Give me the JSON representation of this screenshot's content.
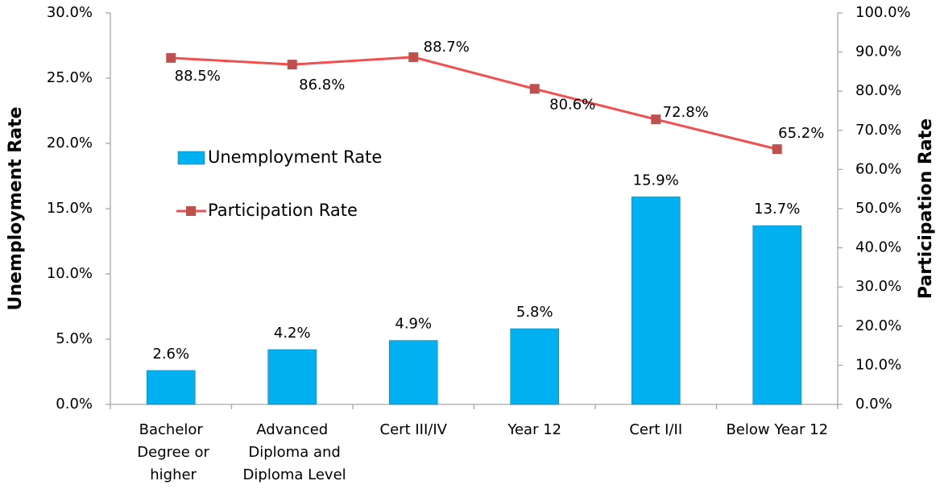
{
  "chart_data": {
    "type": "bar_line",
    "y_label": "Unemployment Rate",
    "y2_label": "Participation Rate",
    "categories": [
      "Bachelor Degree or higher",
      "Advanced Diploma and Diploma Level",
      "Cert III/IV",
      "Year 12",
      "Cert I/II",
      "Below Year 12"
    ],
    "series": [
      {
        "name": "Unemployment Rate",
        "type": "bar",
        "color": "#00b0f0",
        "axis": "y",
        "values": [
          2.6,
          4.2,
          4.9,
          5.8,
          15.9,
          13.7
        ],
        "value_labels": [
          "2.6%",
          "4.2%",
          "4.9%",
          "5.8%",
          "15.9%",
          "13.7%"
        ]
      },
      {
        "name": "Participation Rate",
        "type": "line",
        "color": "#f0504f",
        "marker_color": "#c0504d",
        "axis": "y2",
        "values": [
          88.5,
          86.8,
          88.7,
          80.6,
          72.8,
          65.2
        ],
        "value_labels": [
          "88.5%",
          "86.8%",
          "88.7%",
          "80.6%",
          "72.8%",
          "65.2%"
        ]
      }
    ],
    "ylim": [
      0,
      30
    ],
    "yticks": [
      {
        "value": 0,
        "label": "0.0%"
      },
      {
        "value": 5,
        "label": "5.0%"
      },
      {
        "value": 10,
        "label": "10.0%"
      },
      {
        "value": 15,
        "label": "15.0%"
      },
      {
        "value": 20,
        "label": "20.0%"
      },
      {
        "value": 25,
        "label": "25.0%"
      },
      {
        "value": 30,
        "label": "30.0%"
      }
    ],
    "y2lim": [
      0,
      100
    ],
    "y2ticks": [
      {
        "value": 0,
        "label": "0.0%"
      },
      {
        "value": 10,
        "label": "10.0%"
      },
      {
        "value": 20,
        "label": "20.0%"
      },
      {
        "value": 30,
        "label": "30.0%"
      },
      {
        "value": 40,
        "label": "40.0%"
      },
      {
        "value": 50,
        "label": "50.0%"
      },
      {
        "value": 60,
        "label": "60.0%"
      },
      {
        "value": 70,
        "label": "70.0%"
      },
      {
        "value": 80,
        "label": "80.0%"
      },
      {
        "value": 90,
        "label": "90.0%"
      },
      {
        "value": 100,
        "label": "100.0%"
      }
    ],
    "grid": false,
    "legend": "left"
  }
}
